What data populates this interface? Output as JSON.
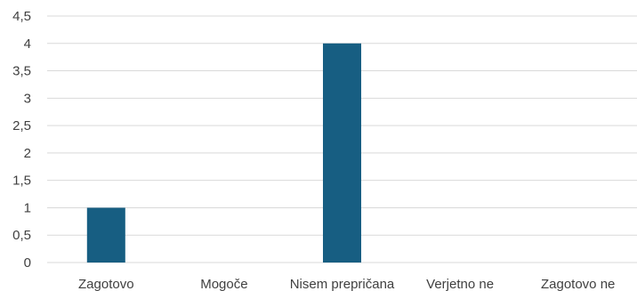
{
  "chart_data": {
    "type": "bar",
    "categories": [
      "Zagotovo",
      "Mogoče",
      "Nisem prepričana",
      "Verjetno ne",
      "Zagotovo ne"
    ],
    "values": [
      1,
      0,
      4,
      0,
      0
    ],
    "ylim": [
      0,
      4.5
    ],
    "yticks": [
      "0",
      "0,5",
      "1",
      "1,5",
      "2",
      "2,5",
      "3",
      "3,5",
      "4",
      "4,5"
    ],
    "grid": true,
    "colors": {
      "bar": "#175e82",
      "grid": "#d9d9d9",
      "text": "#404040"
    }
  }
}
